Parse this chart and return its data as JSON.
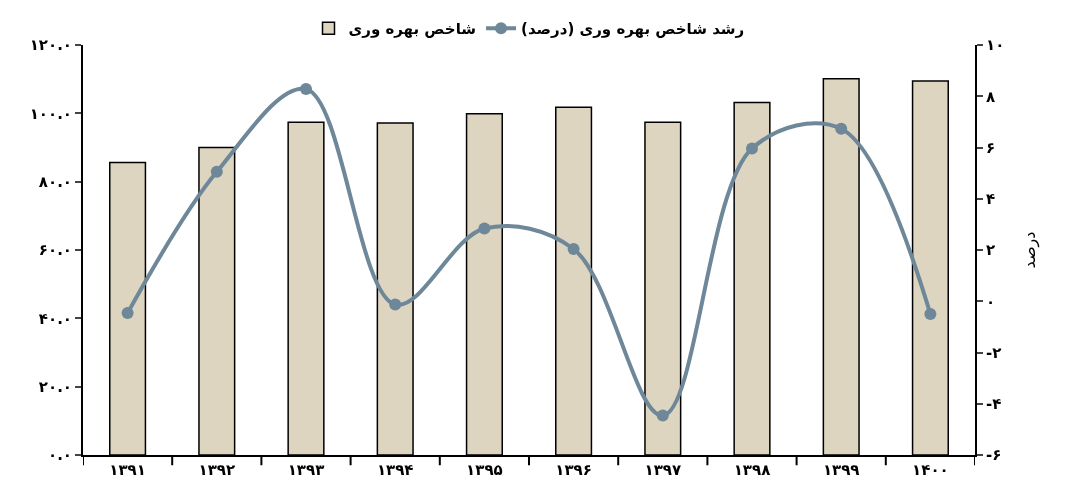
{
  "chart_data": {
    "type": "bar",
    "categories": [
      "۱۳۹۱",
      "۱۳۹۲",
      "۱۳۹۳",
      "۱۳۹۴",
      "۱۳۹۵",
      "۱۳۹۶",
      "۱۳۹۷",
      "۱۳۹۸",
      "۱۳۹۹",
      "۱۴۰۰"
    ],
    "series": [
      {
        "name": "شاخص بهره وری",
        "color": "#ddd5bf",
        "values": [
          85.6,
          90.0,
          97.4,
          97.2,
          99.9,
          101.8,
          97.4,
          103.2,
          110.1,
          109.5
        ]
      },
      {
        "name": "رشد شاخص بهره وری (درصد)",
        "type": "line",
        "axis": "y2",
        "color": "#6e8799",
        "marker": "circle",
        "values": [
          -0.46,
          5.05,
          8.28,
          -0.13,
          2.84,
          2.04,
          -4.46,
          5.96,
          6.73,
          -0.5
        ]
      }
    ],
    "ylim": [
      0,
      120
    ],
    "yticks": [
      {
        "value": 0,
        "label": "۰.۰"
      },
      {
        "value": 20,
        "label": "۲۰.۰"
      },
      {
        "value": 40,
        "label": "۴۰.۰"
      },
      {
        "value": 60,
        "label": "۶۰.۰"
      },
      {
        "value": 80,
        "label": "۸۰.۰"
      },
      {
        "value": 100,
        "label": "۱۰۰.۰"
      },
      {
        "value": 120,
        "label": "۱۲۰.۰"
      }
    ],
    "y2lim": [
      -6,
      10
    ],
    "y2ticks": [
      {
        "value": -6,
        "label": "-۶"
      },
      {
        "value": -4,
        "label": "-۴"
      },
      {
        "value": -2,
        "label": "-۲"
      },
      {
        "value": 0,
        "label": "۰"
      },
      {
        "value": 2,
        "label": "۲"
      },
      {
        "value": 4,
        "label": "۴"
      },
      {
        "value": 6,
        "label": "۶"
      },
      {
        "value": 8,
        "label": "۸"
      },
      {
        "value": 10,
        "label": "۱۰"
      }
    ],
    "y2label": "درصد",
    "legend": "top",
    "grid": false
  }
}
